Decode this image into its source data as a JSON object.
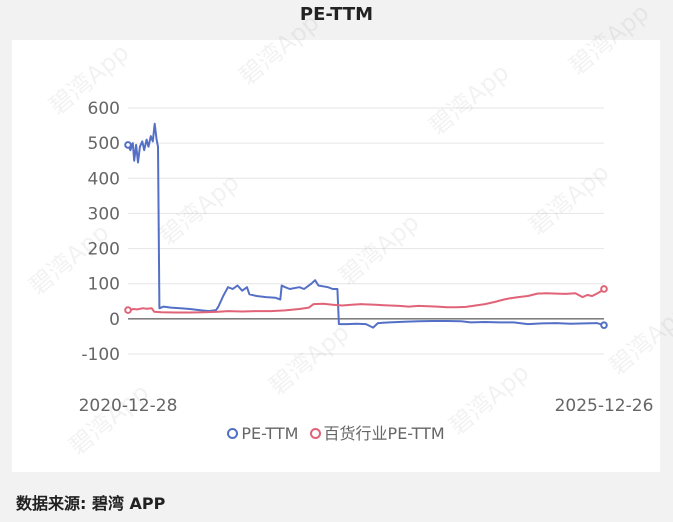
{
  "title": "PE-TTM",
  "source_label": "数据来源: 碧湾 APP",
  "watermark_text": "碧湾App",
  "colors": {
    "series1": "#5470c6",
    "series2": "#e06377"
  },
  "chart_data": {
    "type": "line",
    "title": "PE-TTM",
    "xlabel": "",
    "ylabel": "",
    "ylim": [
      -100,
      600
    ],
    "yticks": [
      600,
      500,
      400,
      300,
      200,
      100,
      0,
      -100
    ],
    "x_tick_labels": [
      "2020-12-28",
      "2025-12-26"
    ],
    "xlim": [
      0,
      100
    ],
    "legend_position": "bottom",
    "grid": true,
    "series": [
      {
        "name": "PE-TTM",
        "color": "#5470c6",
        "points": [
          [
            0,
            495
          ],
          [
            0.5,
            480
          ],
          [
            1,
            500
          ],
          [
            1.3,
            450
          ],
          [
            1.7,
            495
          ],
          [
            2.1,
            445
          ],
          [
            2.5,
            490
          ],
          [
            3.0,
            505
          ],
          [
            3.4,
            480
          ],
          [
            3.9,
            510
          ],
          [
            4.3,
            490
          ],
          [
            4.8,
            520
          ],
          [
            5.2,
            505
          ],
          [
            5.6,
            555
          ],
          [
            6.0,
            510
          ],
          [
            6.3,
            490
          ],
          [
            6.6,
            30
          ],
          [
            7.5,
            35
          ],
          [
            9,
            32
          ],
          [
            11,
            30
          ],
          [
            13,
            28
          ],
          [
            15,
            25
          ],
          [
            17,
            22
          ],
          [
            18.5,
            25
          ],
          [
            19,
            35
          ],
          [
            20,
            65
          ],
          [
            21,
            90
          ],
          [
            22,
            85
          ],
          [
            23,
            95
          ],
          [
            24,
            80
          ],
          [
            25,
            90
          ],
          [
            25.5,
            70
          ],
          [
            27,
            65
          ],
          [
            29,
            62
          ],
          [
            31,
            60
          ],
          [
            32,
            55
          ],
          [
            32.3,
            95
          ],
          [
            33,
            90
          ],
          [
            34,
            85
          ],
          [
            36,
            90
          ],
          [
            37,
            85
          ],
          [
            38.5,
            100
          ],
          [
            39.3,
            110
          ],
          [
            40,
            95
          ],
          [
            42,
            90
          ],
          [
            43,
            85
          ],
          [
            44,
            85
          ],
          [
            44.3,
            -15
          ],
          [
            46,
            -15
          ],
          [
            48,
            -14
          ],
          [
            50,
            -15
          ],
          [
            51.5,
            -25
          ],
          [
            52.5,
            -12
          ],
          [
            55,
            -10
          ],
          [
            58,
            -8
          ],
          [
            61,
            -7
          ],
          [
            64,
            -6
          ],
          [
            67,
            -6
          ],
          [
            70,
            -7
          ],
          [
            72,
            -10
          ],
          [
            75,
            -9
          ],
          [
            78,
            -10
          ],
          [
            81,
            -10
          ],
          [
            84,
            -15
          ],
          [
            87,
            -13
          ],
          [
            90,
            -12
          ],
          [
            93,
            -14
          ],
          [
            96,
            -13
          ],
          [
            98.5,
            -12
          ],
          [
            100,
            -18
          ]
        ]
      },
      {
        "name": "百货行业PE-TTM",
        "color": "#e06377",
        "points": [
          [
            0,
            25
          ],
          [
            0.5,
            24
          ],
          [
            1,
            28
          ],
          [
            2,
            27
          ],
          [
            3,
            30
          ],
          [
            4,
            29
          ],
          [
            5,
            30
          ],
          [
            5.5,
            20
          ],
          [
            7,
            19
          ],
          [
            10,
            18
          ],
          [
            13,
            18
          ],
          [
            16,
            19
          ],
          [
            19,
            20
          ],
          [
            21,
            22
          ],
          [
            24,
            21
          ],
          [
            27,
            22
          ],
          [
            30,
            22
          ],
          [
            33,
            24
          ],
          [
            36,
            28
          ],
          [
            38,
            32
          ],
          [
            39,
            42
          ],
          [
            41,
            43
          ],
          [
            43,
            40
          ],
          [
            45,
            38
          ],
          [
            47,
            40
          ],
          [
            49,
            42
          ],
          [
            50,
            41
          ],
          [
            52,
            40
          ],
          [
            55,
            38
          ],
          [
            57,
            37
          ],
          [
            59,
            35
          ],
          [
            61,
            37
          ],
          [
            63,
            36
          ],
          [
            65,
            35
          ],
          [
            67,
            33
          ],
          [
            69,
            33
          ],
          [
            71,
            34
          ],
          [
            73,
            38
          ],
          [
            75,
            42
          ],
          [
            77,
            48
          ],
          [
            79,
            55
          ],
          [
            80,
            58
          ],
          [
            82,
            62
          ],
          [
            84,
            65
          ],
          [
            86,
            72
          ],
          [
            88,
            73
          ],
          [
            90,
            72
          ],
          [
            92,
            71
          ],
          [
            94,
            73
          ],
          [
            95.5,
            62
          ],
          [
            96.5,
            68
          ],
          [
            97.5,
            65
          ],
          [
            98.5,
            72
          ],
          [
            99.3,
            78
          ],
          [
            100,
            85
          ]
        ]
      }
    ]
  }
}
